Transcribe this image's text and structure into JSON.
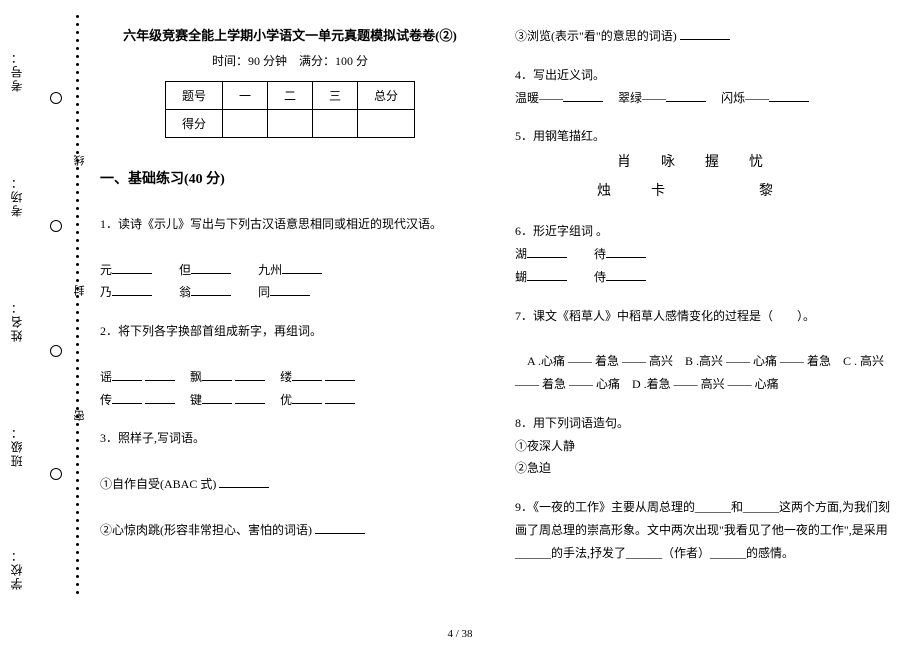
{
  "sidebar": {
    "labels": [
      "考号：",
      "考场：",
      "姓名：",
      "班级：",
      "学校："
    ],
    "cut_marks": [
      "线",
      "封",
      "密"
    ]
  },
  "header": {
    "title": "六年级竞赛全能上学期小学语文一单元真题模拟试卷卷(②)",
    "subtitle": "时间：90 分钟　满分：100 分"
  },
  "score_table": {
    "row1": [
      "题号",
      "一",
      "二",
      "三",
      "总分"
    ],
    "row2": [
      "得分",
      "",
      "",
      "",
      ""
    ]
  },
  "section1": {
    "header": "一、基础练习(40 分)",
    "q1": {
      "text": "1．读诗《示儿》写出与下列古汉语意思相同或相近的现代汉语。",
      "items": [
        "元",
        "但",
        "九州",
        "乃",
        "翁",
        "同"
      ]
    },
    "q2": {
      "text": "2．将下列各字换部首组成新字，再组词。",
      "items": [
        "谣",
        "飘",
        "缕",
        "传",
        "键",
        "优"
      ]
    },
    "q3": {
      "text": "3．照样子,写词语。",
      "line1": "①自作自受(ABAC 式)",
      "line2": "②心惊肉跳(形容非常担心、害怕的词语)"
    }
  },
  "right": {
    "q3c": "③浏览(表示\"看\"的意思的词语)",
    "q4": {
      "text": "4．写出近义词。",
      "items": [
        "温暖——",
        "翠绿——",
        "闪烁——"
      ]
    },
    "q5": {
      "text": "5．用钢笔描红。",
      "chars1": "肖咏握忧",
      "chars2": "烛卡　黎"
    },
    "q6": {
      "text": "6．形近字组词 。",
      "items": [
        "湖",
        "待",
        "蝴",
        "侍"
      ]
    },
    "q7": {
      "text": "7．课文《稻草人》中稻草人感情变化的过程是（　　）。",
      "options": "　A .心痛 —— 着急 —— 高兴　B .高兴 —— 心痛 —— 着急　C . 高兴 —— 着急 —— 心痛　D .着急 —— 高兴 —— 心痛"
    },
    "q8": {
      "text": "8．用下列词语造句。",
      "a": "①夜深人静",
      "b": "②急迫"
    },
    "q9": "9．《一夜的工作》主要从周总理的______和______这两个方面,为我们刻画了周总理的崇高形象。文中两次出现\"我看见了他一夜的工作\",是采用______的手法,抒发了______（作者）______的感情。"
  },
  "footer": "4 / 38"
}
